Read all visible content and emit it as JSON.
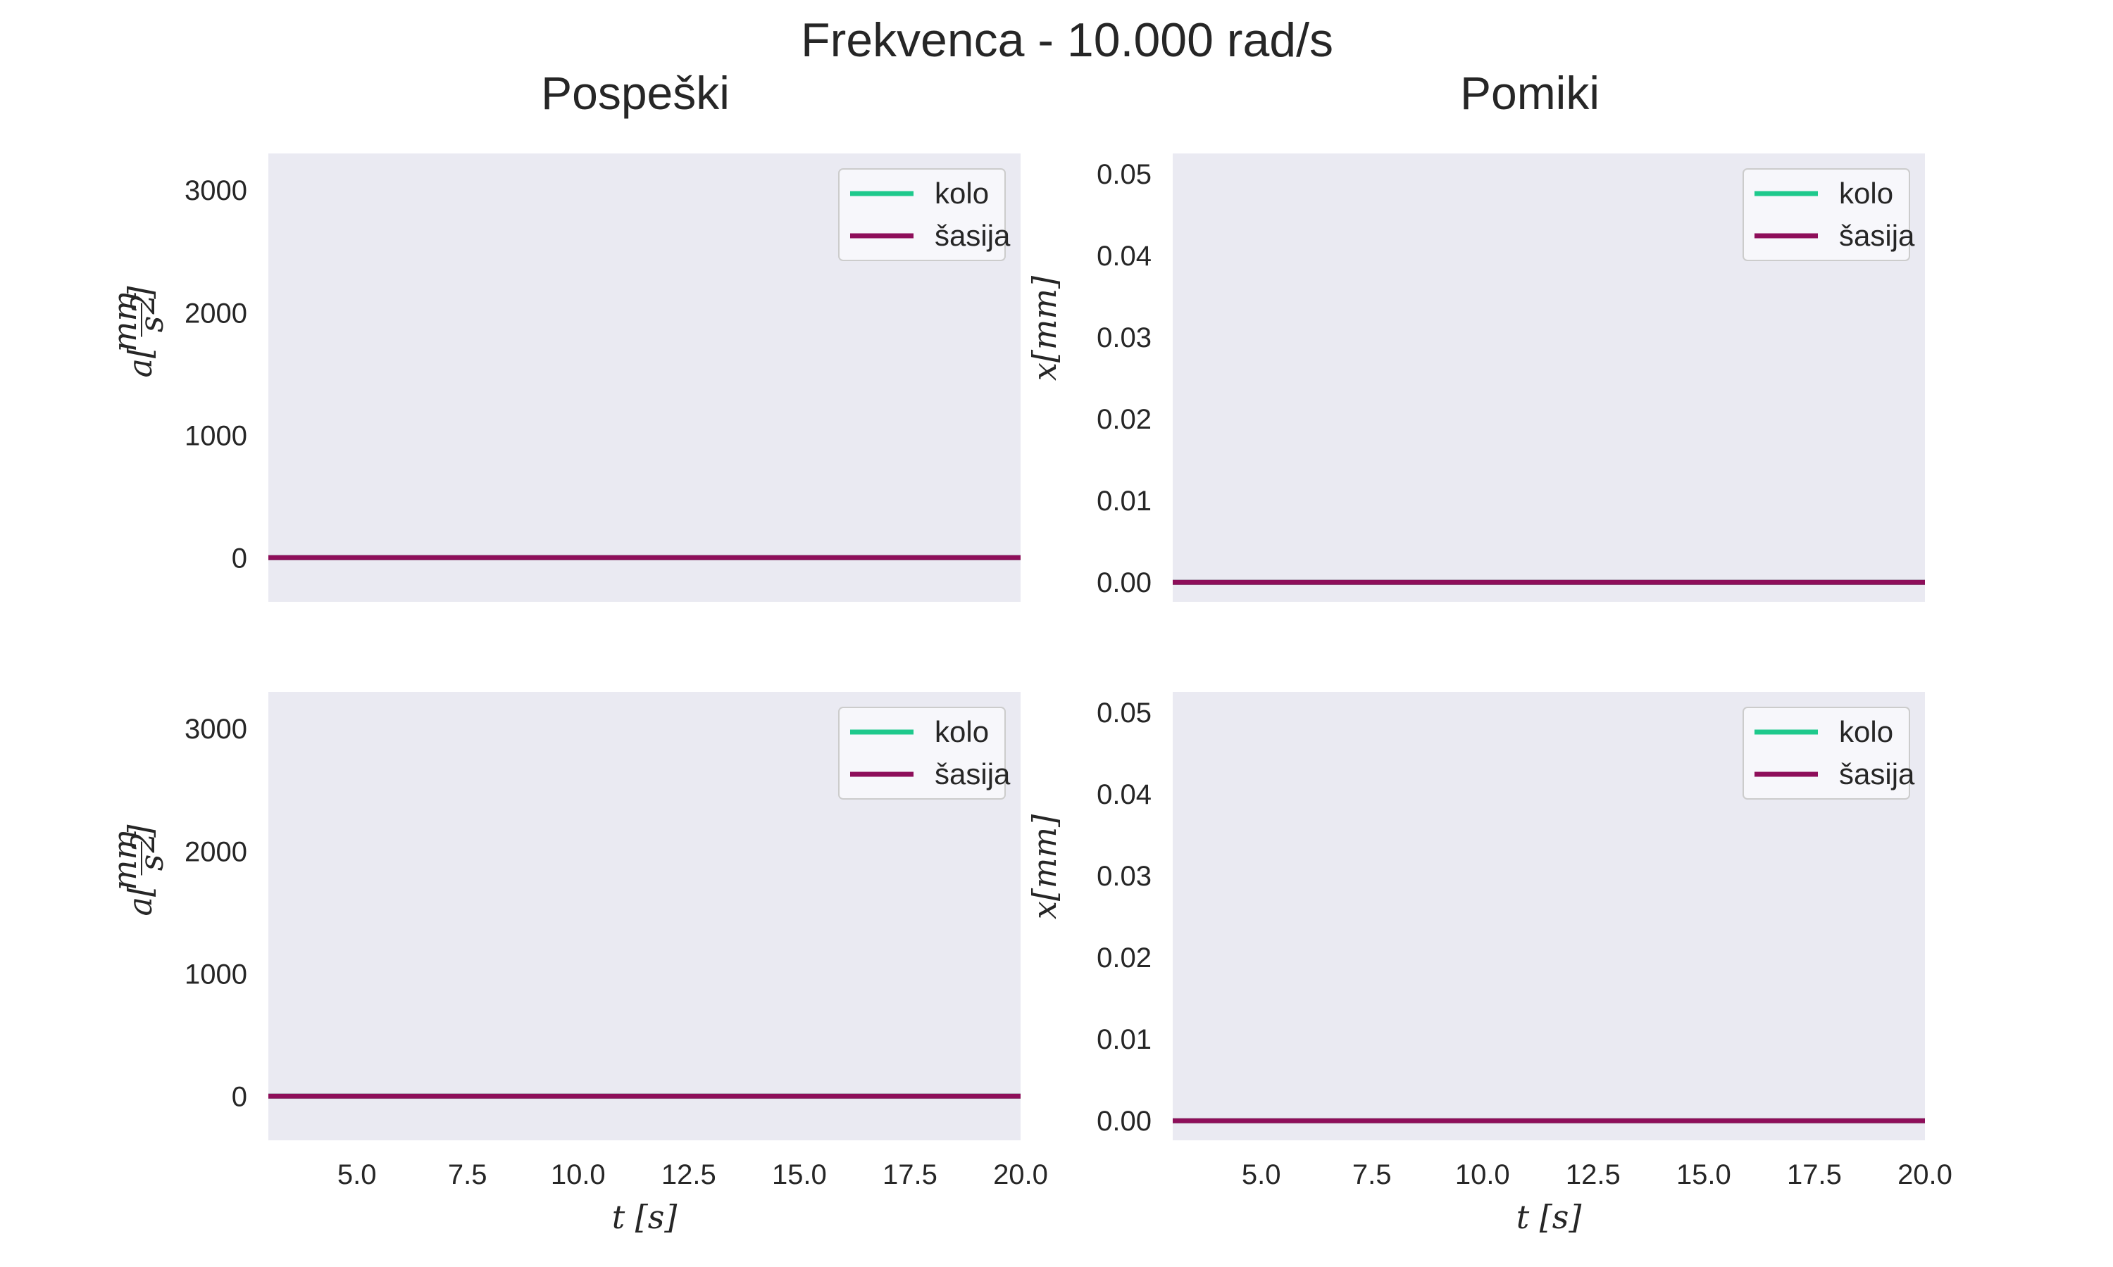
{
  "figure": {
    "suptitle": "Frekvenca - 10.000 rad/s",
    "column_titles": [
      "Pospeški",
      "Pomiki"
    ],
    "colors": {
      "axes_bg": "#eaeaf2",
      "kolo": "#1ec98c",
      "sasija": "#8e0e5a",
      "legend_bg": "#f7f7fb",
      "legend_border": "#cccccc",
      "text": "#262626"
    }
  },
  "chart_data": [
    {
      "type": "line",
      "title": "Pospeški",
      "ylabel": "a[mm/s²]",
      "ylabel_parts": {
        "prefix": "a[",
        "num": "mm",
        "den": "s",
        "den_sup": "2",
        "suffix": "]"
      },
      "xlabel": "",
      "xlim": [
        3.0,
        20.0
      ],
      "ylim": [
        -360,
        3300
      ],
      "yticks": [
        0,
        1000,
        2000,
        3000
      ],
      "ytick_labels": [
        "0",
        "1000",
        "2000",
        "3000"
      ],
      "xticks": [],
      "xtick_labels": [],
      "grid": false,
      "legend": "top-right",
      "series": [
        {
          "name": "kolo",
          "color": "#1ec98c",
          "x": [
            3.0,
            20.0
          ],
          "y": [
            0,
            0
          ]
        },
        {
          "name": "šasija",
          "color": "#8e0e5a",
          "x": [
            3.0,
            20.0
          ],
          "y": [
            0,
            0
          ]
        }
      ]
    },
    {
      "type": "line",
      "title": "Pomiki",
      "ylabel": "x[mm]",
      "xlabel": "",
      "xlim": [
        3.0,
        20.0
      ],
      "ylim": [
        -0.0024,
        0.0525
      ],
      "yticks": [
        0.0,
        0.01,
        0.02,
        0.03,
        0.04,
        0.05
      ],
      "ytick_labels": [
        "0.00",
        "0.01",
        "0.02",
        "0.03",
        "0.04",
        "0.05"
      ],
      "xticks": [],
      "xtick_labels": [],
      "grid": false,
      "legend": "top-right",
      "series": [
        {
          "name": "kolo",
          "color": "#1ec98c",
          "x": [
            3.0,
            20.0
          ],
          "y": [
            0,
            0
          ]
        },
        {
          "name": "šasija",
          "color": "#8e0e5a",
          "x": [
            3.0,
            20.0
          ],
          "y": [
            0,
            0
          ]
        }
      ]
    },
    {
      "type": "line",
      "title": "",
      "ylabel": "a[mm/s²]",
      "ylabel_parts": {
        "prefix": "a[",
        "num": "mm",
        "den": "s",
        "den_sup": "2",
        "suffix": "]"
      },
      "xlabel": "t [s]",
      "xlim": [
        3.0,
        20.0
      ],
      "ylim": [
        -360,
        3300
      ],
      "yticks": [
        0,
        1000,
        2000,
        3000
      ],
      "ytick_labels": [
        "0",
        "1000",
        "2000",
        "3000"
      ],
      "xticks": [
        5.0,
        7.5,
        10.0,
        12.5,
        15.0,
        17.5,
        20.0
      ],
      "xtick_labels": [
        "5.0",
        "7.5",
        "10.0",
        "12.5",
        "15.0",
        "17.5",
        "20.0"
      ],
      "grid": false,
      "legend": "top-right",
      "series": [
        {
          "name": "kolo",
          "color": "#1ec98c",
          "x": [
            3.0,
            20.0
          ],
          "y": [
            0,
            0
          ]
        },
        {
          "name": "šasija",
          "color": "#8e0e5a",
          "x": [
            3.0,
            20.0
          ],
          "y": [
            0,
            0
          ]
        }
      ]
    },
    {
      "type": "line",
      "title": "",
      "ylabel": "x[mm]",
      "xlabel": "t [s]",
      "xlim": [
        3.0,
        20.0
      ],
      "ylim": [
        -0.0024,
        0.0525
      ],
      "yticks": [
        0.0,
        0.01,
        0.02,
        0.03,
        0.04,
        0.05
      ],
      "ytick_labels": [
        "0.00",
        "0.01",
        "0.02",
        "0.03",
        "0.04",
        "0.05"
      ],
      "xticks": [
        5.0,
        7.5,
        10.0,
        12.5,
        15.0,
        17.5,
        20.0
      ],
      "xtick_labels": [
        "5.0",
        "7.5",
        "10.0",
        "12.5",
        "15.0",
        "17.5",
        "20.0"
      ],
      "grid": false,
      "legend": "top-right",
      "series": [
        {
          "name": "kolo",
          "color": "#1ec98c",
          "x": [
            3.0,
            20.0
          ],
          "y": [
            0,
            0
          ]
        },
        {
          "name": "šasija",
          "color": "#8e0e5a",
          "x": [
            3.0,
            20.0
          ],
          "y": [
            0,
            0
          ]
        }
      ]
    }
  ]
}
